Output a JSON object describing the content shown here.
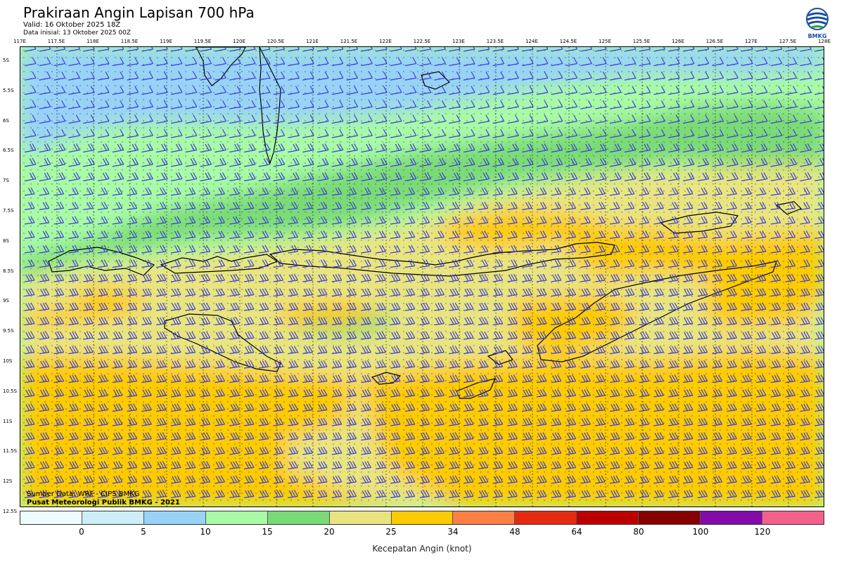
{
  "header": {
    "title": "Prakiraan Angin Lapisan 700 hPa",
    "valid": "Valid: 16 Oktober 2025 18Z",
    "init": "Data inisial: 13 Oktober 2025 00Z"
  },
  "logo": {
    "text": "BMKG",
    "icon": "bmkg-logo-icon"
  },
  "map": {
    "lon_range": [
      117,
      128
    ],
    "lat_range": [
      -5,
      -12.5
    ],
    "lon_ticks": [
      "117E",
      "117.5E",
      "118E",
      "118.5E",
      "119E",
      "119.5E",
      "120E",
      "120.5E",
      "121E",
      "121.5E",
      "122E",
      "122.5E",
      "123E",
      "123.5E",
      "124E",
      "124.5E",
      "125E",
      "125.5E",
      "126E",
      "126.5E",
      "127E",
      "127.5E",
      "128E"
    ],
    "lat_ticks": [
      "5S",
      "5.5S",
      "6S",
      "6.5S",
      "7S",
      "7.5S",
      "8S",
      "8.5S",
      "9S",
      "9.5S",
      "10S",
      "10.5S",
      "11S",
      "11.5S",
      "12S",
      "12.5S"
    ],
    "barb_color": "#3d3ddc",
    "coast_color": "#000000"
  },
  "credits": {
    "source": "Sumber Data: WRF - CIPS BMKG",
    "org": "Pusat Meteorologi Publik BMKG - 2021"
  },
  "colorbar": {
    "title": "Kecepatan Angin (knot)",
    "labels": [
      "0",
      "5",
      "10",
      "15",
      "20",
      "25",
      "34",
      "48",
      "64",
      "80",
      "100",
      "120"
    ],
    "colors": [
      "#f0fbfd",
      "#cdeef9",
      "#98d3f7",
      "#a9fba6",
      "#7ada76",
      "#e8e581",
      "#fccb04",
      "#fc7f44",
      "#e52a12",
      "#bb0001",
      "#860000",
      "#830ba9",
      "#f36089"
    ]
  }
}
